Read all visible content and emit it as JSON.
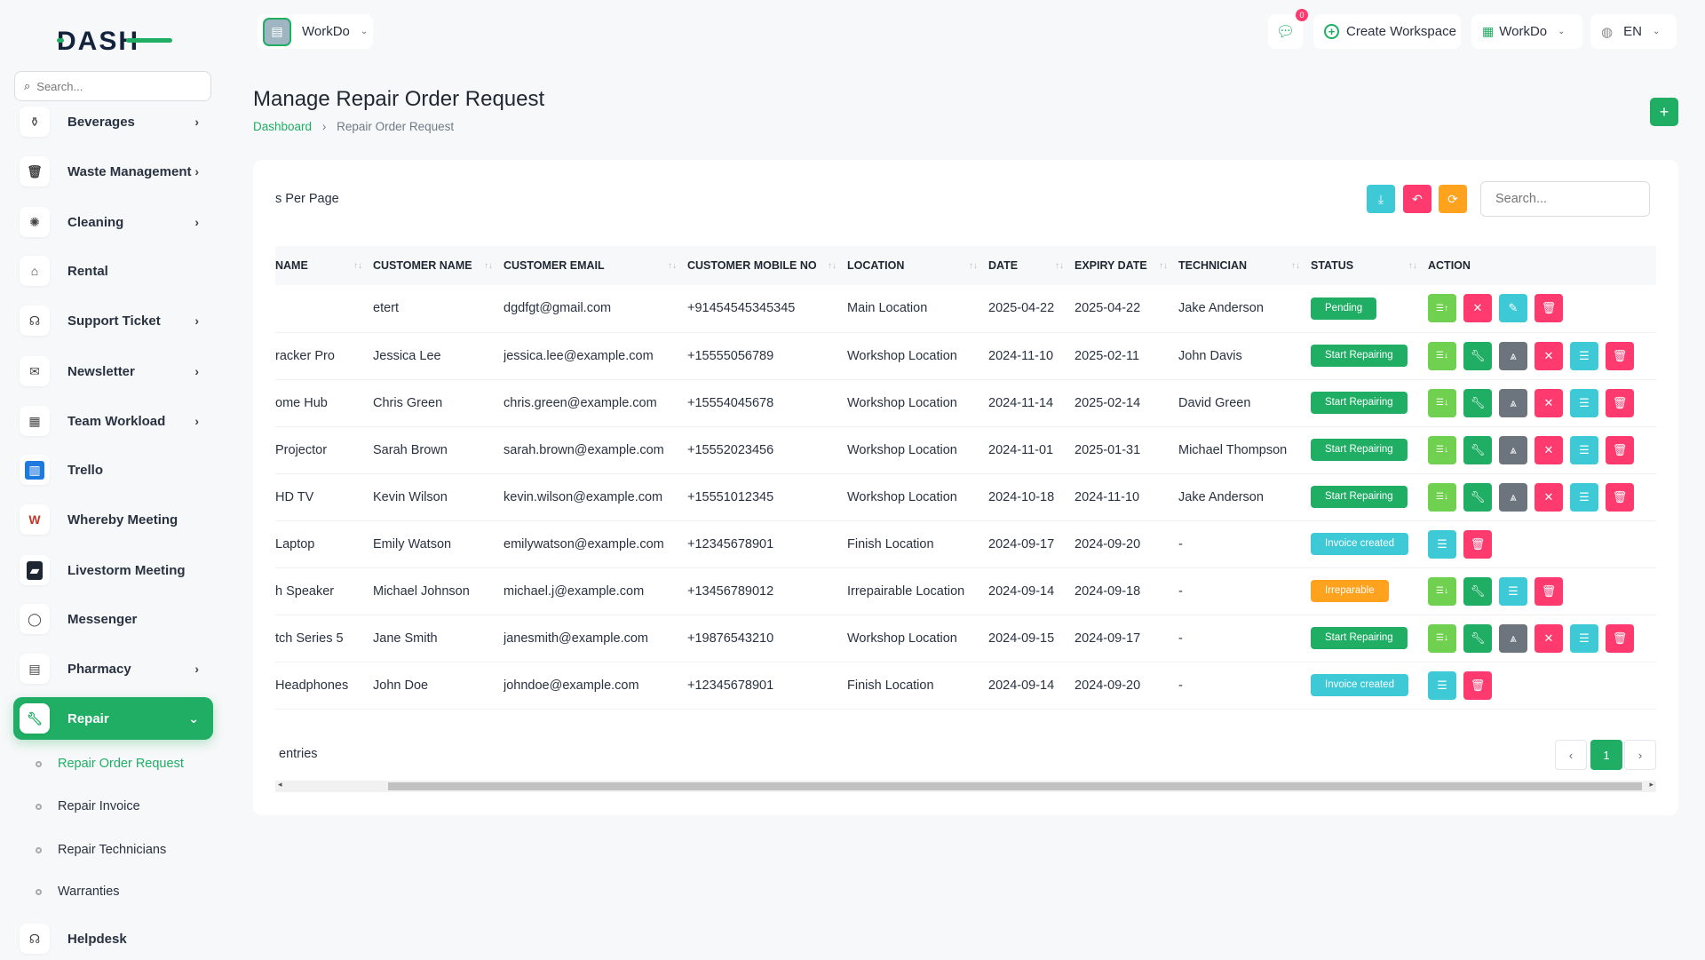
{
  "brand": {
    "logo_text": "DASH",
    "accent": "#1fae64"
  },
  "sidebar": {
    "search_placeholder": "Search...",
    "items": [
      {
        "label": "Beverages",
        "icon": "bottle-icon",
        "chev": true
      },
      {
        "label": "Waste Management",
        "icon": "trash-icon",
        "chev": true
      },
      {
        "label": "Cleaning",
        "icon": "sparkle-icon",
        "chev": true
      },
      {
        "label": "Rental",
        "icon": "home-icon",
        "chev": false
      },
      {
        "label": "Support Ticket",
        "icon": "headset-icon",
        "chev": true
      },
      {
        "label": "Newsletter",
        "icon": "mail-icon",
        "chev": true
      },
      {
        "label": "Team Workload",
        "icon": "calendar-icon",
        "chev": true
      },
      {
        "label": "Trello",
        "icon": "trello-icon",
        "chev": false
      },
      {
        "label": "Whereby Meeting",
        "icon": "whereby-icon",
        "chev": false
      },
      {
        "label": "Livestorm Meeting",
        "icon": "livestorm-icon",
        "chev": false
      },
      {
        "label": "Messenger",
        "icon": "chat-icon",
        "chev": false
      },
      {
        "label": "Pharmacy",
        "icon": "clipboard-icon",
        "chev": true
      },
      {
        "label": "Repair",
        "icon": "wrench-icon",
        "chev": true,
        "active": true
      }
    ],
    "sub_items": [
      "Repair Order Request",
      "Repair Invoice",
      "Repair Technicians",
      "Warranties"
    ],
    "helpdesk": "Helpdesk"
  },
  "topbar": {
    "workspace": "WorkDo",
    "notif_count": "0",
    "create_workspace": "Create Workspace",
    "workspace_menu": "WorkDo",
    "language": "EN"
  },
  "page": {
    "title": "Manage Repair Order Request",
    "breadcrumb": [
      "Dashboard",
      "Repair Order Request"
    ],
    "add_label": "+"
  },
  "table_tools": {
    "per_page": "s Per Page",
    "search_placeholder": "Search..."
  },
  "table": {
    "headers": [
      "NAME",
      "CUSTOMER NAME",
      "CUSTOMER EMAIL",
      "CUSTOMER MOBILE NO",
      "LOCATION",
      "DATE",
      "EXPIRY DATE",
      "TECHNICIAN",
      "STATUS",
      "ACTION"
    ],
    "rows": [
      {
        "cells": [
          "",
          "etert",
          "dgdfgt@gmail.com",
          "+91454545345345",
          "Main Location",
          "2025-04-22",
          "2025-04-22",
          "Jake Anderson"
        ],
        "status": "Pending",
        "actions": [
          "sort-up",
          "close",
          "edit",
          "delete"
        ]
      },
      {
        "cells": [
          "racker Pro",
          "Jessica Lee",
          "jessica.lee@example.com",
          "+15555056789",
          "Workshop Location",
          "2024-11-10",
          "2025-02-11",
          "John Davis"
        ],
        "status": "Start Repairing",
        "actions": [
          "sort-down",
          "wrench",
          "signal",
          "close",
          "list",
          "delete"
        ]
      },
      {
        "cells": [
          "ome Hub",
          "Chris Green",
          "chris.green@example.com",
          "+15554045678",
          "Workshop Location",
          "2024-11-14",
          "2025-02-14",
          "David Green"
        ],
        "status": "Start Repairing",
        "actions": [
          "sort-down",
          "wrench",
          "signal",
          "close",
          "list",
          "delete"
        ]
      },
      {
        "cells": [
          " Projector",
          "Sarah Brown",
          "sarah.brown@example.com",
          "+15552023456",
          "Workshop Location",
          "2024-11-01",
          "2025-01-31",
          "Michael Thompson"
        ],
        "status": "Start Repairing",
        "actions": [
          "sort-down",
          "wrench",
          "signal",
          "close",
          "list",
          "delete"
        ]
      },
      {
        "cells": [
          "HD TV",
          "Kevin Wilson",
          "kevin.wilson@example.com",
          "+15551012345",
          "Workshop Location",
          "2024-10-18",
          "2024-11-10",
          "Jake Anderson"
        ],
        "status": "Start Repairing",
        "actions": [
          "sort-down",
          "wrench",
          "signal",
          "close",
          "list",
          "delete"
        ]
      },
      {
        "cells": [
          "Laptop",
          "Emily Watson",
          "emilywatson@example.com",
          "+12345678901",
          "Finish Location",
          "2024-09-17",
          "2024-09-20",
          "-"
        ],
        "status": "Invoice created",
        "actions": [
          "list",
          "delete"
        ]
      },
      {
        "cells": [
          "h Speaker",
          "Michael Johnson",
          "michael.j@example.com",
          "+13456789012",
          "Irrepairable Location",
          "2024-09-14",
          "2024-09-18",
          "-"
        ],
        "status": "Irreparable",
        "actions": [
          "sort-down",
          "wrench",
          "list",
          "delete"
        ]
      },
      {
        "cells": [
          "tch Series 5",
          "Jane Smith",
          "janesmith@example.com",
          "+19876543210",
          "Workshop Location",
          "2024-09-15",
          "2024-09-17",
          "-"
        ],
        "status": "Start Repairing",
        "actions": [
          "sort-down",
          "wrench",
          "signal",
          "close",
          "list",
          "delete"
        ]
      },
      {
        "cells": [
          " Headphones",
          "John Doe",
          "johndoe@example.com",
          "+12345678901",
          "Finish Location",
          "2024-09-14",
          "2024-09-20",
          "-"
        ],
        "status": "Invoice created",
        "actions": [
          "list",
          "delete"
        ]
      }
    ]
  },
  "status_colors": {
    "Pending": "#1fae64",
    "Start Repairing": "#1fae64",
    "Invoice created": "#3ec9d6",
    "Irreparable": "#ffa21d"
  },
  "action_colors": {
    "sort-up": "#6fd14f",
    "sort-down": "#6fd14f",
    "wrench": "#1fae64",
    "signal": "#6c757d",
    "close": "#ff3a6e",
    "edit": "#3ec9d6",
    "list": "#3ec9d6",
    "delete": "#ff3a6e"
  },
  "footer": {
    "entries": "entries",
    "current_page": "1",
    "prev": "‹",
    "next": "›"
  }
}
